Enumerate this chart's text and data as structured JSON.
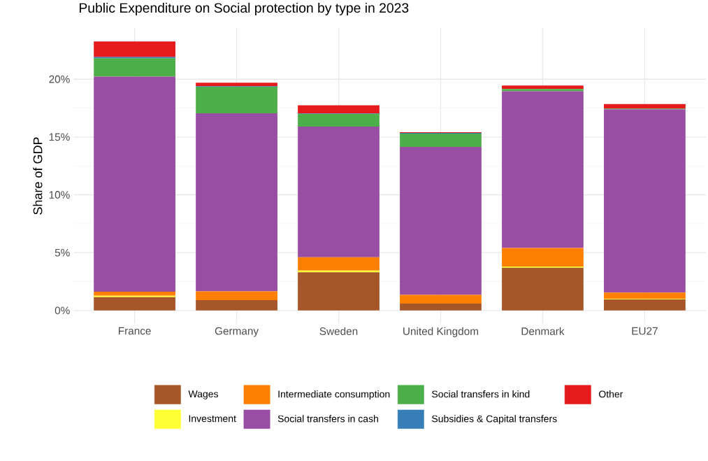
{
  "chart_data": {
    "type": "bar",
    "stacked": true,
    "title": "Public Expenditure on Social protection by type in 2023",
    "ylabel": "Share of GDP",
    "categories": [
      "France",
      "Germany",
      "Sweden",
      "United Kingdom",
      "Denmark",
      "EU27"
    ],
    "series": [
      {
        "name": "Wages",
        "color": "#a65628",
        "values": [
          1.15,
          0.9,
          3.3,
          0.6,
          3.7,
          0.95
        ]
      },
      {
        "name": "Investment",
        "color": "#ffff33",
        "values": [
          0.12,
          0,
          0.15,
          0,
          0.1,
          0.05
        ]
      },
      {
        "name": "Intermediate consumption",
        "color": "#ff7f00",
        "values": [
          0.35,
          0.75,
          1.15,
          0.75,
          1.6,
          0.55
        ]
      },
      {
        "name": "Social transfers in cash",
        "color": "#984ea3",
        "values": [
          18.6,
          15.4,
          11.3,
          12.8,
          13.55,
          15.85
        ]
      },
      {
        "name": "Social transfers in kind",
        "color": "#4daf4a",
        "values": [
          1.6,
          2.3,
          1.1,
          1.15,
          0.2,
          0.05
        ]
      },
      {
        "name": "Subsidies & Capital transfers",
        "color": "#377eb8",
        "values": [
          0.1,
          0.05,
          0.05,
          0.06,
          null,
          0
        ]
      },
      {
        "name": "Other",
        "color": "#e41a1c",
        "values": [
          1.35,
          0.3,
          0.7,
          0.05,
          0.3,
          0.4
        ]
      }
    ],
    "ylim": [
      -1.16,
      24.43
    ],
    "yticks": [
      {
        "value": 0,
        "label": "0%"
      },
      {
        "value": 5,
        "label": "5%"
      },
      {
        "value": 10,
        "label": "10%"
      },
      {
        "value": 15,
        "label": "15%"
      },
      {
        "value": 20,
        "label": "20%"
      }
    ],
    "grid": true,
    "legend": "bottom"
  }
}
